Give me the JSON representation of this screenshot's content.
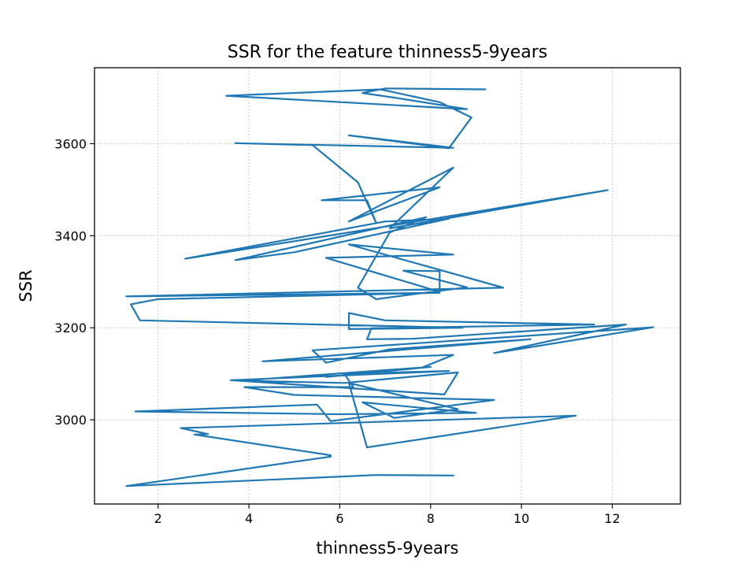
{
  "chart_data": {
    "type": "line",
    "title": "SSR for the feature thinness5-9years",
    "xlabel": "thinness5-9years",
    "ylabel": "SSR",
    "xlim": [
      0.6,
      13.5
    ],
    "ylim": [
      2817,
      3765
    ],
    "x_ticks": [
      2,
      4,
      6,
      8,
      10,
      12
    ],
    "y_ticks": [
      3000,
      3200,
      3400,
      3600
    ],
    "grid": true,
    "legend": "none",
    "series": [
      {
        "color": "#1f77b4",
        "points": [
          [
            9.2,
            3718
          ],
          [
            7.0,
            3720
          ],
          [
            6.5,
            3710
          ],
          [
            7.2,
            3700
          ],
          [
            8.8,
            3675
          ],
          [
            3.5,
            3704
          ],
          [
            6.9,
            3718
          ],
          [
            8.2,
            3690
          ],
          [
            8.9,
            3657
          ],
          [
            8.4,
            3590
          ],
          [
            6.2,
            3618
          ],
          [
            8.5,
            3591
          ],
          [
            3.7,
            3601
          ],
          [
            5.4,
            3597
          ],
          [
            6.4,
            3516
          ],
          [
            6.8,
            3428
          ],
          [
            6.6,
            3477
          ],
          [
            5.6,
            3477
          ],
          [
            8.2,
            3505
          ],
          [
            6.2,
            3431
          ],
          [
            8.5,
            3548
          ],
          [
            7.1,
            3416
          ],
          [
            11.9,
            3499
          ],
          [
            7.2,
            3423
          ],
          [
            2.6,
            3350
          ],
          [
            7.0,
            3431
          ],
          [
            8.4,
            3437
          ],
          [
            5.0,
            3364
          ],
          [
            3.7,
            3347
          ],
          [
            7.9,
            3440
          ],
          [
            7.1,
            3407
          ],
          [
            6.4,
            3287
          ],
          [
            6.8,
            3262
          ],
          [
            8.8,
            3288
          ],
          [
            7.4,
            3324
          ],
          [
            8.2,
            3323
          ],
          [
            8.2,
            3278
          ],
          [
            5.7,
            3352
          ],
          [
            8.5,
            3359
          ],
          [
            6.2,
            3381
          ],
          [
            9.6,
            3287
          ],
          [
            1.3,
            3268
          ],
          [
            8.2,
            3276
          ],
          [
            2.0,
            3262
          ],
          [
            1.4,
            3251
          ],
          [
            1.6,
            3216
          ],
          [
            8.7,
            3200
          ],
          [
            6.2,
            3197
          ],
          [
            6.2,
            3232
          ],
          [
            7.0,
            3216
          ],
          [
            11.6,
            3207
          ],
          [
            6.7,
            3199
          ],
          [
            6.6,
            3175
          ],
          [
            7.6,
            3176
          ],
          [
            12.3,
            3207
          ],
          [
            9.4,
            3145
          ],
          [
            12.9,
            3201
          ],
          [
            5.4,
            3151
          ],
          [
            5.7,
            3124
          ],
          [
            7.1,
            3153
          ],
          [
            10.2,
            3175
          ],
          [
            4.3,
            3127
          ],
          [
            8.5,
            3141
          ],
          [
            7.8,
            3113
          ],
          [
            5.7,
            3093
          ],
          [
            8.0,
            3115
          ],
          [
            3.8,
            3085
          ],
          [
            6.1,
            3080
          ],
          [
            8.6,
            3103
          ],
          [
            8.3,
            3055
          ],
          [
            3.6,
            3086
          ],
          [
            8.4,
            3106
          ],
          [
            6.1,
            3100
          ],
          [
            6.3,
            3071
          ],
          [
            3.9,
            3071
          ],
          [
            5.0,
            3054
          ],
          [
            9.4,
            3043
          ],
          [
            5.8,
            2997
          ],
          [
            5.5,
            3033
          ],
          [
            1.5,
            3018
          ],
          [
            6.0,
            3012
          ],
          [
            9.0,
            3015
          ],
          [
            6.5,
            3038
          ],
          [
            7.2,
            3004
          ],
          [
            8.6,
            3023
          ],
          [
            6.2,
            3080
          ],
          [
            6.6,
            2940
          ],
          [
            11.2,
            3009
          ],
          [
            2.5,
            2982
          ],
          [
            3.1,
            2969
          ],
          [
            2.8,
            2968
          ],
          [
            5.8,
            2923
          ],
          [
            5.8,
            2920
          ],
          [
            1.3,
            2856
          ],
          [
            6.8,
            2880
          ],
          [
            8.5,
            2879
          ]
        ]
      }
    ]
  }
}
